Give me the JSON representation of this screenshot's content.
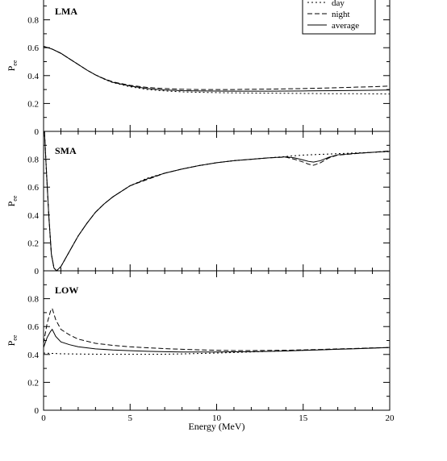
{
  "chart_data": [
    {
      "type": "line",
      "panel_label": "LMA",
      "ylabel": "P",
      "ylabel_sub": "ee",
      "xlim": [
        0,
        20
      ],
      "ylim": [
        0,
        1
      ],
      "yticks": [
        "0",
        "0.2",
        "0.4",
        "0.6",
        "0.8"
      ],
      "legend": {
        "placement": "top-right",
        "entries": [
          "day",
          "night",
          "average"
        ]
      },
      "series": [
        {
          "name": "day",
          "style": "dotted",
          "x": [
            0,
            0.5,
            1,
            1.5,
            2,
            2.5,
            3,
            3.5,
            4,
            5,
            6,
            7,
            8,
            9,
            10,
            11,
            12,
            13,
            14,
            15,
            16,
            17,
            18,
            19,
            20
          ],
          "y": [
            0.61,
            0.59,
            0.56,
            0.52,
            0.48,
            0.44,
            0.405,
            0.375,
            0.35,
            0.32,
            0.3,
            0.29,
            0.283,
            0.28,
            0.278,
            0.276,
            0.275,
            0.274,
            0.273,
            0.272,
            0.271,
            0.27,
            0.27,
            0.269,
            0.268
          ]
        },
        {
          "name": "night",
          "style": "dashed",
          "x": [
            0,
            0.5,
            1,
            1.5,
            2,
            2.5,
            3,
            3.5,
            4,
            5,
            6,
            7,
            8,
            9,
            10,
            11,
            12,
            13,
            14,
            15,
            16,
            17,
            18,
            19,
            20
          ],
          "y": [
            0.61,
            0.59,
            0.56,
            0.52,
            0.48,
            0.44,
            0.405,
            0.378,
            0.355,
            0.33,
            0.315,
            0.307,
            0.302,
            0.3,
            0.3,
            0.3,
            0.302,
            0.303,
            0.305,
            0.307,
            0.31,
            0.313,
            0.317,
            0.32,
            0.325
          ]
        },
        {
          "name": "average",
          "style": "solid",
          "x": [
            0,
            0.5,
            1,
            1.5,
            2,
            2.5,
            3,
            3.5,
            4,
            5,
            6,
            7,
            8,
            9,
            10,
            11,
            12,
            13,
            14,
            15,
            16,
            17,
            18,
            19,
            20
          ],
          "y": [
            0.61,
            0.59,
            0.56,
            0.52,
            0.48,
            0.44,
            0.405,
            0.376,
            0.352,
            0.325,
            0.307,
            0.297,
            0.292,
            0.29,
            0.289,
            0.288,
            0.288,
            0.288,
            0.289,
            0.29,
            0.291,
            0.292,
            0.293,
            0.295,
            0.297
          ]
        }
      ]
    },
    {
      "type": "line",
      "panel_label": "SMA",
      "ylabel": "P",
      "ylabel_sub": "ee",
      "xlim": [
        0,
        20
      ],
      "ylim": [
        0,
        1
      ],
      "yticks": [
        "0",
        "0.2",
        "0.4",
        "0.6",
        "0.8"
      ],
      "series": [
        {
          "name": "day",
          "style": "dotted",
          "x": [
            0.05,
            0.15,
            0.3,
            0.45,
            0.6,
            0.75,
            1,
            1.5,
            2,
            2.5,
            3,
            3.5,
            4,
            5,
            6,
            7,
            8,
            9,
            10,
            11,
            12,
            13,
            14,
            15,
            16,
            17,
            18,
            19,
            20
          ],
          "y": [
            1.0,
            0.75,
            0.4,
            0.12,
            0.02,
            0.0,
            0.03,
            0.14,
            0.25,
            0.34,
            0.42,
            0.48,
            0.53,
            0.61,
            0.665,
            0.7,
            0.73,
            0.755,
            0.775,
            0.79,
            0.8,
            0.81,
            0.82,
            0.83,
            0.835,
            0.84,
            0.845,
            0.85,
            0.855
          ]
        },
        {
          "name": "night",
          "style": "dashed",
          "x": [
            0.05,
            0.15,
            0.3,
            0.45,
            0.6,
            0.75,
            1,
            1.5,
            2,
            2.5,
            3,
            3.5,
            4,
            5,
            6,
            7,
            8,
            9,
            10,
            11,
            12,
            13,
            14,
            14.5,
            15,
            15.3,
            15.6,
            16,
            16.5,
            17,
            18,
            19,
            20
          ],
          "y": [
            1.0,
            0.75,
            0.4,
            0.12,
            0.02,
            0.0,
            0.03,
            0.14,
            0.25,
            0.34,
            0.42,
            0.48,
            0.53,
            0.61,
            0.655,
            0.7,
            0.73,
            0.755,
            0.775,
            0.79,
            0.8,
            0.81,
            0.815,
            0.8,
            0.78,
            0.765,
            0.757,
            0.775,
            0.81,
            0.83,
            0.84,
            0.85,
            0.86
          ]
        },
        {
          "name": "average",
          "style": "solid",
          "x": [
            0.05,
            0.15,
            0.3,
            0.45,
            0.6,
            0.75,
            1,
            1.5,
            2,
            2.5,
            3,
            3.5,
            4,
            5,
            6,
            7,
            8,
            9,
            10,
            11,
            12,
            13,
            14,
            14.5,
            15,
            15.3,
            15.6,
            16,
            16.5,
            17,
            18,
            19,
            20
          ],
          "y": [
            1.0,
            0.75,
            0.4,
            0.12,
            0.02,
            0.0,
            0.03,
            0.14,
            0.25,
            0.34,
            0.42,
            0.48,
            0.53,
            0.61,
            0.66,
            0.7,
            0.73,
            0.755,
            0.775,
            0.79,
            0.8,
            0.81,
            0.817,
            0.81,
            0.795,
            0.785,
            0.78,
            0.79,
            0.815,
            0.832,
            0.842,
            0.85,
            0.857
          ]
        }
      ]
    },
    {
      "type": "line",
      "panel_label": "LOW",
      "ylabel": "P",
      "ylabel_sub": "ee",
      "xlim": [
        0,
        20
      ],
      "ylim": [
        0,
        1
      ],
      "yticks": [
        "0",
        "0.2",
        "0.4",
        "0.6",
        "0.8"
      ],
      "xticks": [
        "0",
        "5",
        "10",
        "15",
        "20"
      ],
      "xlabel": "Energy (MeV)",
      "series": [
        {
          "name": "day",
          "style": "dotted",
          "x": [
            0,
            1,
            2,
            3,
            4,
            5,
            6,
            7,
            8,
            9,
            10,
            11,
            12,
            13,
            14,
            15,
            16,
            17,
            18,
            19,
            20
          ],
          "y": [
            0.41,
            0.405,
            0.403,
            0.402,
            0.401,
            0.401,
            0.401,
            0.402,
            0.404,
            0.407,
            0.41,
            0.414,
            0.418,
            0.422,
            0.426,
            0.43,
            0.434,
            0.438,
            0.442,
            0.446,
            0.45
          ]
        },
        {
          "name": "night",
          "style": "dashed",
          "x": [
            0,
            0.2,
            0.4,
            0.5,
            0.7,
            1,
            1.5,
            2,
            3,
            4,
            5,
            6,
            7,
            8,
            9,
            10,
            11,
            12,
            13,
            14,
            15,
            16,
            17,
            18,
            19,
            20
          ],
          "y": [
            0.48,
            0.62,
            0.71,
            0.73,
            0.65,
            0.58,
            0.54,
            0.51,
            0.48,
            0.465,
            0.455,
            0.448,
            0.442,
            0.437,
            0.433,
            0.43,
            0.428,
            0.428,
            0.429,
            0.43,
            0.433,
            0.436,
            0.44,
            0.443,
            0.447,
            0.45
          ]
        },
        {
          "name": "average",
          "style": "solid",
          "x": [
            0,
            0.2,
            0.4,
            0.5,
            0.7,
            1,
            1.5,
            2,
            3,
            4,
            5,
            6,
            7,
            8,
            9,
            10,
            11,
            12,
            13,
            14,
            15,
            16,
            17,
            18,
            19,
            20
          ],
          "y": [
            0.45,
            0.52,
            0.565,
            0.58,
            0.53,
            0.49,
            0.47,
            0.455,
            0.44,
            0.432,
            0.427,
            0.423,
            0.42,
            0.418,
            0.418,
            0.418,
            0.419,
            0.42,
            0.422,
            0.425,
            0.429,
            0.433,
            0.437,
            0.441,
            0.445,
            0.45
          ]
        }
      ]
    }
  ]
}
